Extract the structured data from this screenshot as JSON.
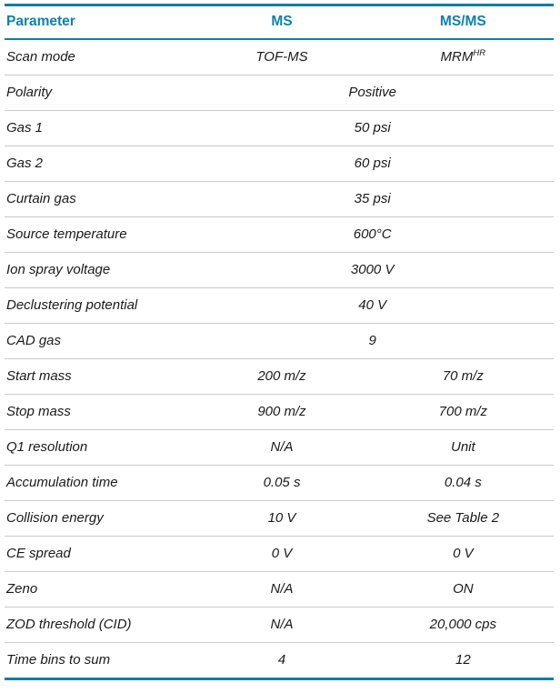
{
  "colors": {
    "accent_rule": "#0f7da4",
    "header_text": "#0c82ad",
    "row_divider": "#c9c9c9",
    "body_text": "#1a1a1a"
  },
  "table": {
    "columns": [
      {
        "label": "Parameter"
      },
      {
        "label": "MS"
      },
      {
        "label": "MS/MS"
      }
    ],
    "rows": [
      {
        "param": "Scan mode",
        "ms": "TOF-MS",
        "msms": {
          "text": "MRM",
          "sup": "HR"
        }
      },
      {
        "param": "Polarity",
        "span": true,
        "value": "Positive"
      },
      {
        "param": "Gas 1",
        "span": true,
        "value": "50 psi"
      },
      {
        "param": "Gas 2",
        "span": true,
        "value": "60 psi"
      },
      {
        "param": "Curtain gas",
        "span": true,
        "value": "35 psi"
      },
      {
        "param": "Source temperature",
        "span": true,
        "value": "600°C"
      },
      {
        "param": "Ion spray voltage",
        "span": true,
        "value": "3000 V"
      },
      {
        "param": "Declustering potential",
        "span": true,
        "value": "40 V"
      },
      {
        "param": "CAD gas",
        "span": true,
        "value": "9"
      },
      {
        "param": "Start mass",
        "ms": "200 m/z",
        "msms": "70 m/z"
      },
      {
        "param": "Stop mass",
        "ms": "900 m/z",
        "msms": "700 m/z"
      },
      {
        "param": "Q1 resolution",
        "ms": "N/A",
        "msms": "Unit"
      },
      {
        "param": "Accumulation time",
        "ms": "0.05 s",
        "msms": "0.04 s"
      },
      {
        "param": "Collision energy",
        "ms": "10 V",
        "msms": "See Table 2"
      },
      {
        "param": "CE spread",
        "ms": "0 V",
        "msms": "0 V"
      },
      {
        "param": "Zeno",
        "ms": "N/A",
        "msms": "ON"
      },
      {
        "param": "ZOD threshold (CID)",
        "ms": "N/A",
        "msms": "20,000 cps"
      },
      {
        "param": "Time bins to sum",
        "ms": "4",
        "msms": "12"
      }
    ]
  }
}
